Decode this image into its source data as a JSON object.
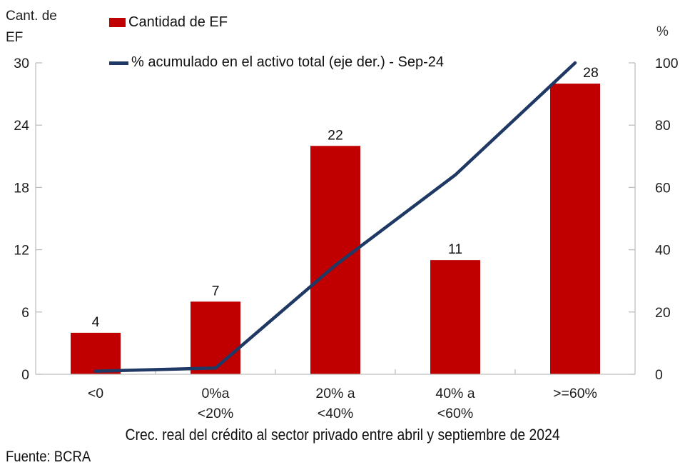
{
  "chart_data": {
    "type": "bar",
    "combo": "bar+line",
    "categories": [
      [
        "<0"
      ],
      [
        "0%a",
        "<20%"
      ],
      [
        "20% a",
        "<40%"
      ],
      [
        "40% a",
        "<60%"
      ],
      [
        ">=60%"
      ]
    ],
    "series": [
      {
        "name": "Cantidad de EF",
        "type": "bar",
        "axis": "left",
        "color": "#C00000",
        "values": [
          4,
          7,
          22,
          11,
          28
        ]
      },
      {
        "name": "% acumulado en el activo total (eje der.) - Sep-24",
        "type": "line",
        "axis": "right",
        "color": "#1F3864",
        "values": [
          1,
          2,
          35,
          64,
          100
        ]
      }
    ],
    "left_axis": {
      "title": "Cant. de EF",
      "min": 0,
      "max": 30,
      "ticks": [
        0,
        6,
        12,
        18,
        24,
        30
      ]
    },
    "right_axis": {
      "title": "%",
      "min": 0,
      "max": 100,
      "ticks": [
        0,
        20,
        40,
        60,
        80,
        100
      ]
    },
    "xlabel": "Crec. real del crédito al sector privado entre abril y septiembre de 2024",
    "source": "Fuente: BCRA",
    "grid": false,
    "legend_position": "top-left",
    "colors": {
      "bar": "#C00000",
      "line": "#1F3864",
      "axis": "#BFBFBF",
      "text": "#202020"
    }
  }
}
